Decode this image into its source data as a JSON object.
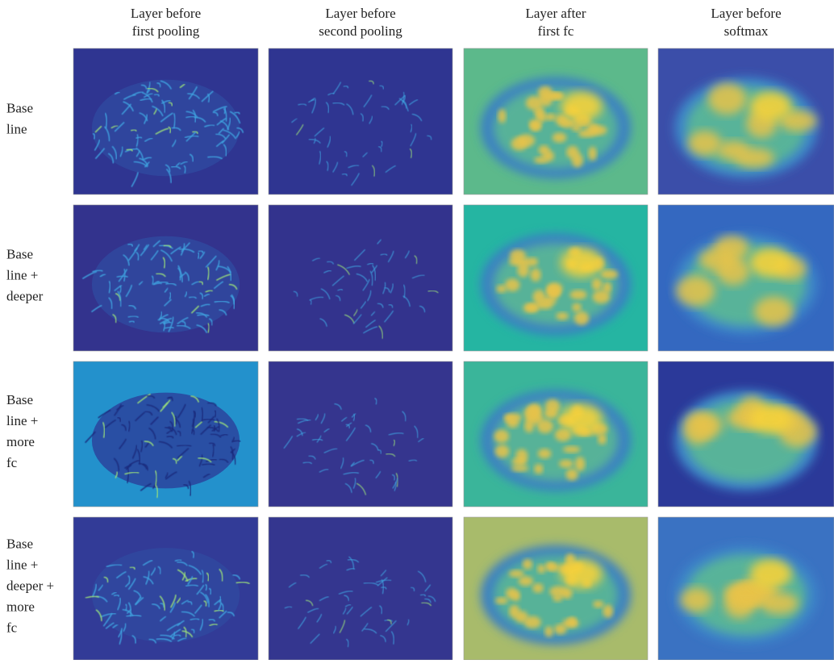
{
  "column_headers": [
    [
      "Layer before",
      "first pooling"
    ],
    [
      "Layer before",
      "second pooling"
    ],
    [
      "Layer after",
      "first fc"
    ],
    [
      "Layer before",
      "softmax"
    ]
  ],
  "row_labels": [
    [
      "Base",
      "line"
    ],
    [
      "Base",
      "line +",
      "deeper"
    ],
    [
      "Base",
      "line +",
      "more",
      "fc"
    ],
    [
      "Base",
      "line +",
      "deeper +",
      "more",
      "fc"
    ]
  ]
}
